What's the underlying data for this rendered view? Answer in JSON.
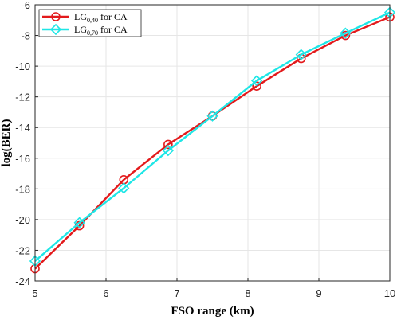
{
  "chart_data": {
    "type": "line",
    "xlabel": "FSO range (km)",
    "ylabel": "log(BER)",
    "xlim": [
      5,
      10
    ],
    "ylim": [
      -24,
      -6
    ],
    "xticks": [
      5,
      6,
      7,
      8,
      9,
      10
    ],
    "yticks": [
      -24,
      -22,
      -20,
      -18,
      -16,
      -14,
      -12,
      -10,
      -8,
      -6
    ],
    "grid": true,
    "legend_position": "top-left",
    "series": [
      {
        "name_main": "LG",
        "name_sub": "0,40",
        "name_rest": " for CA",
        "color": "#e31a1c",
        "marker": "circle",
        "x": [
          5,
          5.625,
          6.25,
          6.875,
          7.5,
          8.125,
          8.75,
          9.375,
          10
        ],
        "y": [
          -23.2,
          -20.4,
          -17.4,
          -15.1,
          -13.25,
          -11.3,
          -9.5,
          -8.0,
          -6.8
        ]
      },
      {
        "name_main": "LG",
        "name_sub": "0,70",
        "name_rest": " for CA",
        "color": "#1ee6e6",
        "marker": "diamond",
        "x": [
          5,
          5.625,
          6.25,
          6.875,
          7.5,
          8.125,
          8.75,
          9.375,
          10
        ],
        "y": [
          -22.7,
          -20.2,
          -17.95,
          -15.5,
          -13.25,
          -10.95,
          -9.25,
          -7.85,
          -6.5
        ]
      }
    ]
  }
}
